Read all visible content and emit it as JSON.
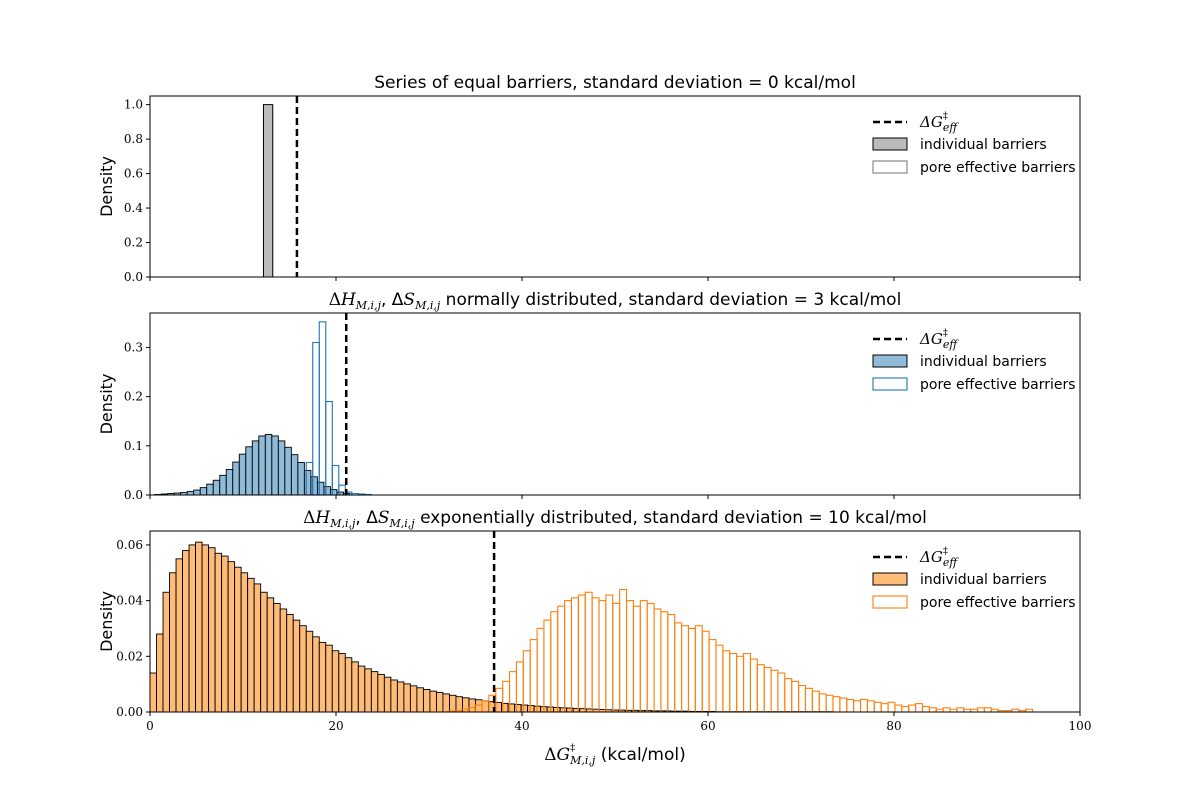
{
  "chart_data": [
    {
      "type": "histogram",
      "title": "Series of equal barriers, standard deviation = 0 kcal/mol",
      "ylabel": "Density",
      "xlim": [
        0,
        100
      ],
      "ylim": [
        0,
        1.05
      ],
      "yticks": [
        "0.0",
        "0.2",
        "0.4",
        "0.6",
        "0.8",
        "1.0"
      ],
      "yticks_values": [
        0,
        0.2,
        0.4,
        0.6,
        0.8,
        1.0
      ],
      "effective_barrier": 15.8,
      "legend": {
        "placement": "top-right",
        "line_main": "ΔG",
        "line_sup": "‡",
        "line_sub": "eff",
        "individual": "individual barriers",
        "pore": "pore effective barriers"
      },
      "colors": {
        "fill": "#bbbbbb",
        "edge": "#000000",
        "outline": "#7f7f7f"
      },
      "individual": {
        "bins": [
          [
            12.2,
            13.2
          ]
        ],
        "values": [
          1.0
        ]
      },
      "pore": {
        "bins": [],
        "values": []
      }
    },
    {
      "type": "histogram",
      "title": "ΔHM,i,j, ΔSM,i,j normally distributed, standard deviation = 3 kcal/mol",
      "title_parts": [
        "Δ",
        "H",
        "M,i,j",
        ", Δ",
        "S",
        "M,i,j",
        " normally distributed, standard deviation = 3 kcal/mol"
      ],
      "ylabel": "Density",
      "xlim": [
        0,
        100
      ],
      "ylim": [
        0,
        0.37
      ],
      "yticks": [
        "0.0",
        "0.1",
        "0.2",
        "0.3"
      ],
      "yticks_values": [
        0,
        0.1,
        0.2,
        0.3
      ],
      "effective_barrier": 21.1,
      "legend": {
        "placement": "top-right",
        "line_main": "ΔG",
        "line_sup": "‡",
        "line_sub": "eff",
        "individual": "individual barriers",
        "pore": "pore effective barriers"
      },
      "colors": {
        "fill": "#8fbbd9",
        "edge": "#000000",
        "outline": "#1f77b4"
      },
      "individual": {
        "start": 0.5,
        "width": 0.7,
        "values": [
          0.001,
          0.002,
          0.003,
          0.004,
          0.005,
          0.007,
          0.01,
          0.015,
          0.022,
          0.03,
          0.04,
          0.052,
          0.067,
          0.083,
          0.098,
          0.11,
          0.12,
          0.123,
          0.12,
          0.11,
          0.097,
          0.082,
          0.066,
          0.05,
          0.037,
          0.026,
          0.017,
          0.011,
          0.006,
          0.003
        ]
      },
      "pore": {
        "start": 16.8,
        "width": 0.7,
        "values": [
          0.066,
          0.31,
          0.352,
          0.19,
          0.06,
          0.02,
          0.006,
          0.003,
          0.002,
          0.001
        ]
      }
    },
    {
      "type": "histogram",
      "title": "ΔHM,i,j, ΔSM,i,j exponentially distributed, standard deviation = 10 kcal/mol",
      "title_parts": [
        "Δ",
        "H",
        "M,i,j",
        ", Δ",
        "S",
        "M,i,j",
        " exponentially distributed, standard deviation = 10 kcal/mol"
      ],
      "ylabel": "Density",
      "xlabel": "ΔGM,i,j (kcal/mol)",
      "xlabel_parts": [
        "Δ",
        "G",
        "‡",
        "M,i,j",
        " (kcal/mol)"
      ],
      "xlim": [
        0,
        100
      ],
      "ylim": [
        0,
        0.065
      ],
      "xticks": [
        "0",
        "20",
        "40",
        "60",
        "80",
        "100"
      ],
      "xticks_values": [
        0,
        20,
        40,
        60,
        80,
        100
      ],
      "yticks": [
        "0.00",
        "0.02",
        "0.04",
        "0.06"
      ],
      "yticks_values": [
        0,
        0.02,
        0.04,
        0.06
      ],
      "effective_barrier": 37.0,
      "legend": {
        "placement": "top-right",
        "line_main": "ΔG",
        "line_sup": "‡",
        "line_sub": "eff",
        "individual": "individual barriers",
        "pore": "pore effective barriers"
      },
      "colors": {
        "fill": "#ffbb78",
        "edge": "#000000",
        "outline": "#ff7f0e"
      },
      "individual": {
        "start": 0.0,
        "width": 0.7,
        "values": [
          0.014,
          0.028,
          0.043,
          0.05,
          0.055,
          0.058,
          0.06,
          0.061,
          0.06,
          0.059,
          0.057,
          0.056,
          0.054,
          0.052,
          0.05,
          0.048,
          0.046,
          0.043,
          0.041,
          0.039,
          0.037,
          0.035,
          0.033,
          0.031,
          0.029,
          0.027,
          0.025,
          0.024,
          0.022,
          0.021,
          0.0195,
          0.018,
          0.0165,
          0.0155,
          0.0145,
          0.0135,
          0.0125,
          0.0115,
          0.0108,
          0.0101,
          0.0094,
          0.0087,
          0.0081,
          0.0075,
          0.007,
          0.0065,
          0.006,
          0.0055,
          0.0051,
          0.0047,
          0.0044,
          0.004,
          0.0037,
          0.0034,
          0.0031,
          0.0029,
          0.0027,
          0.0025,
          0.0023,
          0.0021,
          0.0019,
          0.0018,
          0.0016,
          0.0015,
          0.0014,
          0.0013,
          0.0012,
          0.0011,
          0.001,
          0.0009,
          0.0008,
          0.0007,
          0.0007,
          0.0006,
          0.0006,
          0.0005,
          0.0005,
          0.0004,
          0.0004,
          0.0004,
          0.0003,
          0.0003,
          0.0003,
          0.0002,
          0.0002,
          0.0002,
          0.0002,
          0.0001,
          0.0001,
          0.0001,
          0.0001,
          0.0001,
          0.0001,
          0.0001,
          0.0001,
          0.0001,
          0.0001,
          0.0001,
          0.0001,
          0.0001,
          0.0001,
          0.0001,
          0.0001,
          0.0001,
          0.0001
        ]
      },
      "pore": {
        "start": 32.0,
        "width": 0.74,
        "values": [
          0.0003,
          0.0005,
          0.001,
          0.0015,
          0.0025,
          0.004,
          0.006,
          0.0085,
          0.011,
          0.0145,
          0.018,
          0.022,
          0.026,
          0.03,
          0.033,
          0.036,
          0.038,
          0.04,
          0.041,
          0.042,
          0.043,
          0.041,
          0.04,
          0.042,
          0.039,
          0.044,
          0.04,
          0.038,
          0.04,
          0.039,
          0.037,
          0.036,
          0.035,
          0.032,
          0.031,
          0.03,
          0.031,
          0.029,
          0.026,
          0.024,
          0.022,
          0.021,
          0.02,
          0.021,
          0.019,
          0.017,
          0.016,
          0.015,
          0.014,
          0.012,
          0.011,
          0.0095,
          0.0085,
          0.0075,
          0.0065,
          0.006,
          0.0055,
          0.005,
          0.0045,
          0.004,
          0.0045,
          0.004,
          0.0035,
          0.003,
          0.0035,
          0.0025,
          0.002,
          0.0025,
          0.003,
          0.002,
          0.0015,
          0.001,
          0.0015,
          0.001,
          0.0015,
          0.001,
          0.001,
          0.0015,
          0.0015,
          0.001,
          0.0005,
          0.0005,
          0.001,
          0.0005,
          0.001
        ]
      }
    }
  ]
}
